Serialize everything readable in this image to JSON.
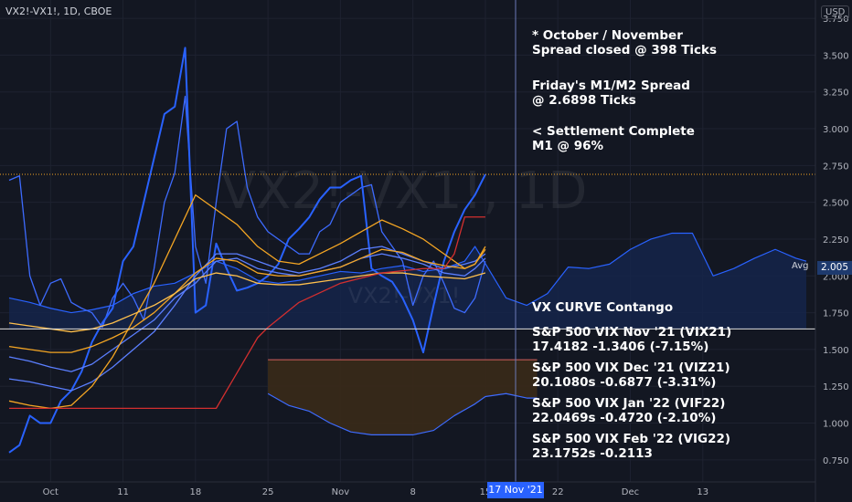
{
  "header": {
    "symbol": "VX2!-VX1!, 1D, CBOE",
    "currency": "USD",
    "watermark_main": "VX2!-VX1!, 1D",
    "watermark_sub": "VX2!-VX1!"
  },
  "annotations": [
    "* October / November\nSpread closed @ 398 Ticks",
    "Friday's M1/M2 Spread\n@ 2.6898 Ticks",
    "< Settlement Complete\nM1 @ 96%",
    "VX CURVE Contango",
    "S&P 500 VIX Nov '21 (VIX21)\n17.4182 -1.3406 (-7.15%)",
    "S&P 500 VIX Dec '21 (VIZ21)\n20.1080s -0.6877 (-3.31%)",
    "S&P 500 VIX Jan '22 (VIF22)\n22.0469s -0.4720 (-2.10%)",
    "S&P 500 VIX Feb '22 (VIG22)\n23.1752s -0.2113"
  ],
  "avg": {
    "label": "Avg",
    "value": "2.005"
  },
  "cursor_date": "17 Nov '21",
  "colors": {
    "background": "#131722",
    "grid": "#1e2230",
    "blue": "#2962ff",
    "blue_light": "#3d6bff",
    "orange": "#f5a623",
    "red": "#d32f2f",
    "contango_fill": "#3a2a18",
    "avg_fill": "#15254a"
  },
  "chart_data": {
    "type": "line",
    "x_ticks": [
      "Oct",
      "11",
      "18",
      "25",
      "Nov",
      "8",
      "15",
      "22",
      "Dec",
      "13"
    ],
    "y_ticks": [
      "0.750",
      "1.000",
      "1.250",
      "1.500",
      "1.750",
      "2.000",
      "2.250",
      "2.500",
      "2.750",
      "3.000",
      "3.250",
      "3.500",
      "3.750"
    ],
    "ylim": [
      0.6,
      3.85
    ],
    "x_range": [
      0,
      77
    ],
    "x_tick_positions": [
      4,
      11,
      18,
      25,
      32,
      39,
      46,
      53,
      60,
      67
    ],
    "reference_lines": [
      {
        "value": 2.69,
        "color": "#f5a623",
        "style": "dotted"
      },
      {
        "value": 1.64,
        "color": "#e0e0e0",
        "style": "solid"
      }
    ],
    "avg_series": {
      "color": "#2962ff",
      "x": [
        0,
        2,
        4,
        6,
        8,
        10,
        12,
        14,
        16,
        18,
        20,
        22,
        24,
        26,
        28,
        30,
        32,
        34,
        36,
        38,
        40,
        42,
        44,
        45,
        48,
        50,
        52,
        54,
        56,
        58,
        60,
        62,
        64,
        66,
        68,
        70,
        72,
        74,
        76,
        77
      ],
      "y": [
        1.85,
        1.82,
        1.78,
        1.75,
        1.77,
        1.8,
        1.88,
        1.93,
        1.95,
        2.02,
        2.1,
        2.05,
        1.97,
        1.95,
        1.97,
        2.0,
        2.03,
        2.02,
        2.05,
        2.07,
        2.03,
        2.05,
        2.1,
        2.2,
        1.85,
        1.8,
        1.88,
        2.06,
        2.05,
        2.08,
        2.18,
        2.25,
        2.29,
        2.29,
        2.0,
        2.05,
        2.12,
        2.18,
        2.12,
        2.1
      ]
    },
    "contango_series": {
      "color": "#3d6bff",
      "x": [
        25,
        27,
        29,
        31,
        33,
        35,
        37,
        39,
        41,
        43,
        45,
        46,
        48,
        50,
        51
      ],
      "y": [
        1.2,
        1.12,
        1.08,
        1.0,
        0.94,
        0.92,
        0.92,
        0.92,
        0.95,
        1.05,
        1.13,
        1.18,
        1.2,
        1.17,
        1.17
      ]
    },
    "contango_top": 1.43,
    "series": [
      {
        "color": "#3d6bff",
        "x": [
          0,
          1,
          2,
          3,
          4,
          5,
          6,
          7,
          8,
          9,
          10,
          11,
          12,
          13,
          14,
          15,
          16,
          17,
          18,
          19,
          20,
          21,
          22,
          23,
          24,
          25,
          26,
          27,
          28,
          29,
          30,
          31,
          32,
          33,
          34,
          35,
          36,
          37,
          38,
          39,
          40,
          41,
          42,
          43,
          44,
          45,
          46
        ],
        "y": [
          2.65,
          2.68,
          2.0,
          1.8,
          1.95,
          1.98,
          1.82,
          1.78,
          1.75,
          1.65,
          1.85,
          1.95,
          1.85,
          1.7,
          2.05,
          2.5,
          2.7,
          3.22,
          2.2,
          1.95,
          2.5,
          3.0,
          3.05,
          2.6,
          2.4,
          2.3,
          2.25,
          2.2,
          2.15,
          2.15,
          2.3,
          2.35,
          2.5,
          2.55,
          2.6,
          2.62,
          2.3,
          2.2,
          2.1,
          1.8,
          2.0,
          2.1,
          1.95,
          1.78,
          1.75,
          1.85,
          2.1
        ]
      },
      {
        "color": "#2962ff",
        "x": [
          0,
          1,
          2,
          3,
          4,
          5,
          6,
          7,
          8,
          9,
          10,
          11,
          12,
          13,
          14,
          15,
          16,
          17,
          18,
          19,
          20,
          21,
          22,
          23,
          24,
          25,
          26,
          27,
          28,
          29,
          30,
          31,
          32,
          33,
          34,
          35,
          36,
          37,
          38,
          39,
          40,
          41,
          42,
          43,
          44,
          45,
          46
        ],
        "y": [
          0.8,
          0.85,
          1.05,
          1.0,
          1.0,
          1.15,
          1.22,
          1.35,
          1.55,
          1.68,
          1.78,
          2.1,
          2.2,
          2.5,
          2.8,
          3.1,
          3.15,
          3.55,
          1.75,
          1.8,
          2.22,
          2.05,
          1.9,
          1.92,
          1.95,
          2.0,
          2.08,
          2.25,
          2.32,
          2.4,
          2.52,
          2.6,
          2.6,
          2.65,
          2.68,
          2.05,
          2.0,
          1.96,
          1.85,
          1.7,
          1.48,
          1.8,
          2.1,
          2.3,
          2.45,
          2.55,
          2.69
        ]
      },
      {
        "color": "#5b7fff",
        "x": [
          0,
          2,
          4,
          6,
          8,
          10,
          12,
          14,
          16,
          18,
          20,
          22,
          24,
          26,
          28,
          30,
          32,
          34,
          36,
          38,
          40,
          42,
          44,
          45,
          46
        ],
        "y": [
          1.3,
          1.28,
          1.25,
          1.22,
          1.28,
          1.38,
          1.5,
          1.62,
          1.8,
          2.0,
          2.15,
          2.15,
          2.1,
          2.05,
          2.02,
          2.05,
          2.1,
          2.18,
          2.2,
          2.15,
          2.1,
          2.05,
          2.08,
          2.1,
          2.15
        ]
      },
      {
        "color": "#5b7fff",
        "x": [
          0,
          2,
          4,
          6,
          8,
          10,
          12,
          14,
          16,
          18,
          20,
          22,
          24,
          26,
          28,
          30,
          32,
          34,
          36,
          38,
          40,
          42,
          44,
          45,
          46
        ],
        "y": [
          1.45,
          1.42,
          1.38,
          1.35,
          1.4,
          1.5,
          1.6,
          1.7,
          1.85,
          1.95,
          2.1,
          2.12,
          2.05,
          2.02,
          2.0,
          2.03,
          2.06,
          2.12,
          2.15,
          2.12,
          2.08,
          2.02,
          2.0,
          2.05,
          2.12
        ]
      },
      {
        "color": "#f5a623",
        "x": [
          0,
          2,
          4,
          6,
          8,
          10,
          12,
          14,
          16,
          18,
          20,
          22,
          24,
          26,
          28,
          30,
          32,
          34,
          36,
          38,
          40,
          42,
          44,
          45,
          46
        ],
        "y": [
          1.15,
          1.12,
          1.1,
          1.12,
          1.25,
          1.45,
          1.7,
          1.95,
          2.25,
          2.55,
          2.45,
          2.35,
          2.2,
          2.1,
          2.08,
          2.15,
          2.22,
          2.3,
          2.38,
          2.32,
          2.25,
          2.15,
          2.05,
          2.08,
          2.2
        ]
      },
      {
        "color": "#f5a623",
        "x": [
          0,
          2,
          4,
          6,
          8,
          10,
          12,
          14,
          16,
          18,
          20,
          22,
          24,
          26,
          28,
          30,
          32,
          34,
          36,
          38,
          40,
          42,
          44,
          45,
          46
        ],
        "y": [
          1.52,
          1.5,
          1.48,
          1.48,
          1.52,
          1.58,
          1.65,
          1.75,
          1.88,
          2.02,
          2.12,
          2.1,
          2.02,
          2.0,
          2.0,
          2.03,
          2.06,
          2.12,
          2.18,
          2.16,
          2.1,
          2.07,
          2.05,
          2.08,
          2.18
        ]
      },
      {
        "color": "#ffc04d",
        "x": [
          0,
          2,
          4,
          6,
          8,
          10,
          12,
          14,
          16,
          18,
          20,
          22,
          24,
          26,
          28,
          30,
          32,
          34,
          36,
          38,
          40,
          42,
          44,
          45,
          46
        ],
        "y": [
          1.68,
          1.66,
          1.64,
          1.62,
          1.64,
          1.68,
          1.74,
          1.8,
          1.88,
          1.98,
          2.02,
          2.0,
          1.95,
          1.94,
          1.94,
          1.96,
          1.98,
          2.0,
          2.02,
          2.02,
          2.0,
          1.99,
          1.98,
          2.0,
          2.02
        ]
      },
      {
        "color": "#d32f2f",
        "x": [
          0,
          4,
          8,
          12,
          16,
          20,
          24,
          25,
          28,
          32,
          36,
          40,
          42,
          43,
          44,
          46
        ],
        "y": [
          1.1,
          1.1,
          1.1,
          1.1,
          1.1,
          1.1,
          1.58,
          1.65,
          1.82,
          1.95,
          2.02,
          2.05,
          2.05,
          2.15,
          2.4,
          2.4
        ]
      }
    ]
  }
}
